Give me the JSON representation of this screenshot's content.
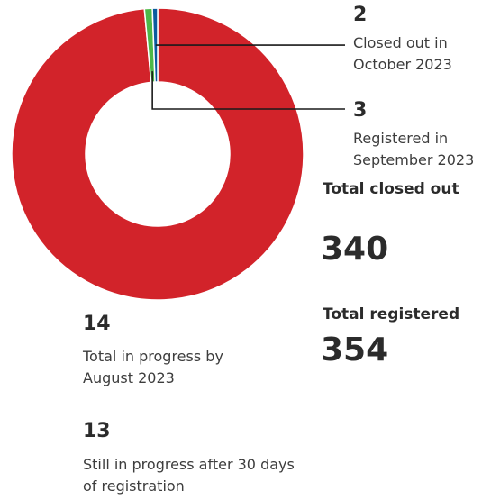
{
  "chart_data": {
    "type": "pie",
    "style": "donut",
    "categories": [
      "Closed out",
      "Registered in September 2023",
      "Closed out in October 2023"
    ],
    "values": [
      340,
      3,
      2
    ],
    "colors": [
      "#d2232a",
      "#4db848",
      "#0b5c9e"
    ]
  },
  "annotations": {
    "closed_oct": {
      "value": "2",
      "label": "Closed out in October 2023"
    },
    "registered_sep": {
      "value": "3",
      "label": "Registered  in September 2023"
    },
    "total_closed": {
      "label": "Total closed out",
      "value": "340"
    },
    "total_registered": {
      "label": "Total registered",
      "value": "354"
    },
    "in_progress": {
      "value": "14",
      "label": "Total in progress by August 2023"
    },
    "still_in_progress": {
      "value": "13",
      "label": "Still in progress after 30 days of registration"
    }
  },
  "colors": {
    "leader_line": "#1a1a1a",
    "text": "#3d3d3d"
  }
}
